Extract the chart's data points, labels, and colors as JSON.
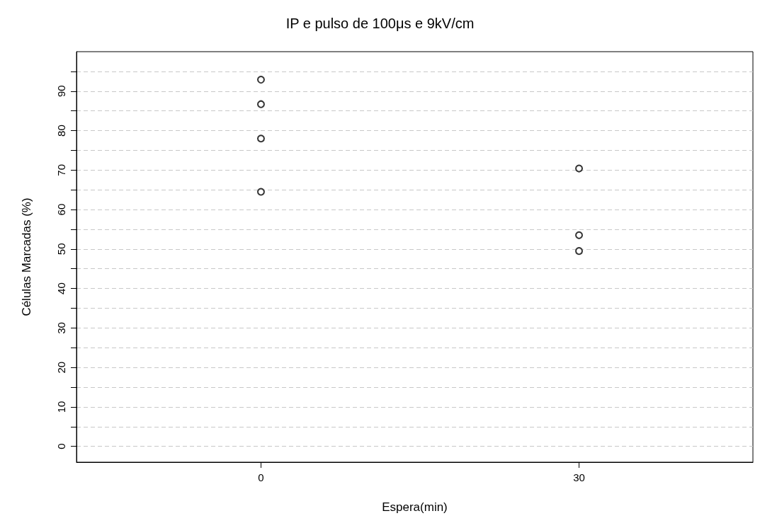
{
  "chart_data": {
    "type": "scatter",
    "title": "IP e pulso de 100μs e 9kV/cm",
    "xlabel": "Espera(min)",
    "ylabel": "Células Marcadas (%)",
    "x": [
      0,
      30
    ],
    "series": [
      {
        "color": "#000000",
        "values": [
          92.9,
          70.4
        ]
      },
      {
        "color": "#000000",
        "values": [
          86.7,
          53.5
        ]
      },
      {
        "color": "#000000",
        "values": [
          78.0,
          49.5
        ]
      },
      {
        "color": "#000000",
        "values": [
          64.5,
          null
        ]
      }
    ],
    "marker": "circle",
    "xlim": [
      -17.4,
      46.4
    ],
    "xticks": [
      0,
      30
    ],
    "ylim": [
      -4,
      100
    ],
    "yticks": [
      0,
      {
        "value": 5,
        "label": null
      },
      10,
      {
        "value": 15,
        "label": null
      },
      20,
      {
        "value": 25,
        "label": null
      },
      30,
      {
        "value": 35,
        "label": null
      },
      40,
      {
        "value": 45,
        "label": null
      },
      50,
      {
        "value": 55,
        "label": null
      },
      60,
      {
        "value": 65,
        "label": null
      },
      70,
      {
        "value": 75,
        "label": null
      },
      80,
      {
        "value": 85,
        "label": null
      },
      90,
      {
        "value": 95,
        "label": null
      }
    ],
    "grid": "y"
  }
}
